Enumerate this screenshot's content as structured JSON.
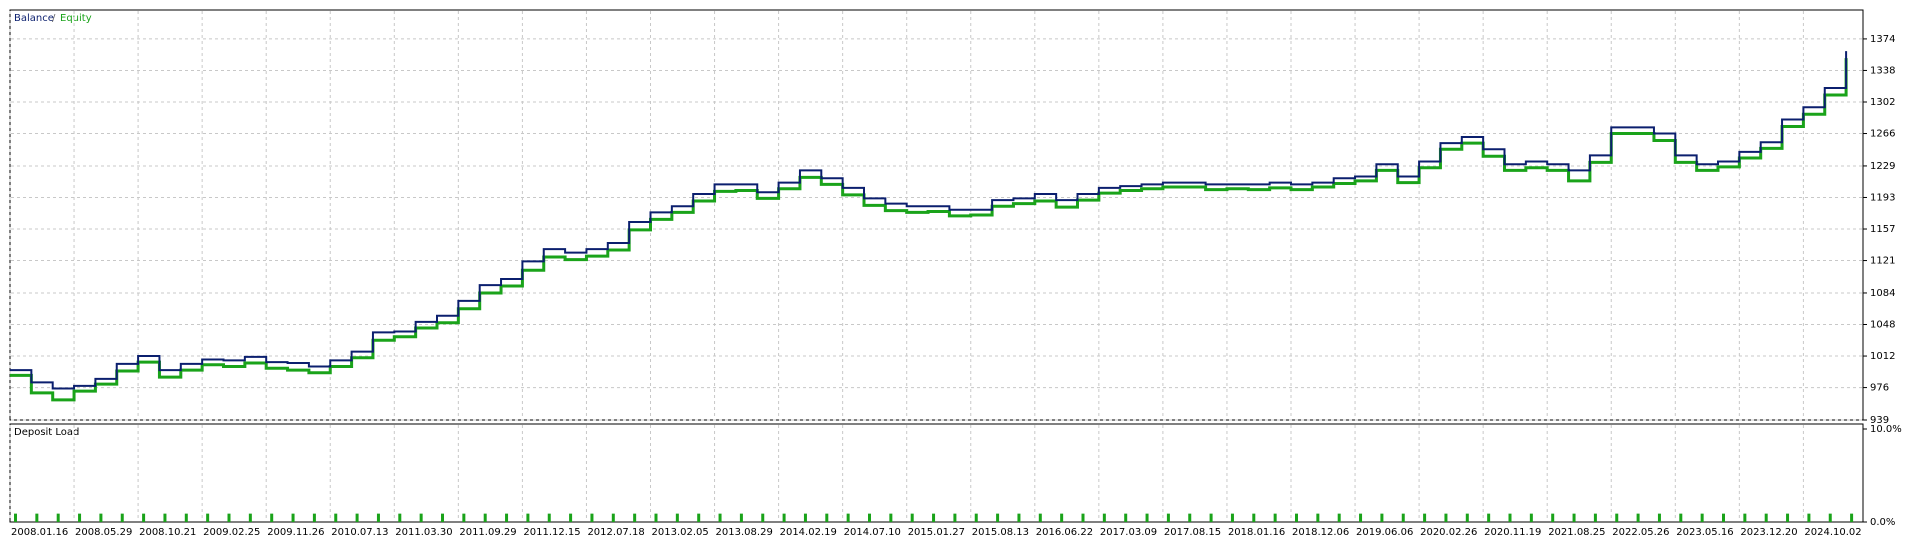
{
  "chart_data": [
    {
      "type": "line",
      "legend": [
        "Balance",
        "/",
        "Equity"
      ],
      "categories": [
        "2008.01.16",
        null,
        null,
        "2008.05.29",
        null,
        null,
        "2008.10.21",
        null,
        null,
        "2009.02.25",
        null,
        null,
        "2009.11.26",
        null,
        null,
        "2010.07.13",
        null,
        null,
        "2011.03.30",
        null,
        null,
        "2011.09.29",
        null,
        null,
        "2011.12.15",
        null,
        null,
        "2012.07.18",
        null,
        null,
        "2013.02.05",
        null,
        null,
        "2013.08.29",
        null,
        null,
        "2014.02.19",
        null,
        null,
        "2014.07.10",
        null,
        null,
        "2015.01.27",
        null,
        null,
        "2015.08.13",
        null,
        null,
        "2016.06.22",
        null,
        null,
        "2017.03.09",
        null,
        null,
        "2017.08.15",
        null,
        null,
        "2018.01.16",
        null,
        null,
        "2018.12.06",
        null,
        null,
        "2019.06.06",
        null,
        null,
        "2020.02.26",
        null,
        null,
        "2020.11.19",
        null,
        null,
        "2021.08.25",
        null,
        null,
        "2022.05.26",
        null,
        null,
        "2023.05.16",
        null,
        null,
        "2023.12.20",
        null,
        null,
        "2024.10.02",
        null,
        null
      ],
      "series": [
        {
          "name": "Equity",
          "color": "#1aa31a",
          "values": [
            990,
            970,
            962,
            972,
            980,
            995,
            1005,
            988,
            996,
            1002,
            1000,
            1004,
            998,
            996,
            993,
            1000,
            1010,
            1030,
            1034,
            1044,
            1050,
            1066,
            1084,
            1092,
            1110,
            1125,
            1122,
            1126,
            1133,
            1156,
            1168,
            1176,
            1189,
            1200,
            1201,
            1192,
            1203,
            1216,
            1208,
            1196,
            1184,
            1178,
            1176,
            1177,
            1172,
            1173,
            1183,
            1186,
            1189,
            1182,
            1190,
            1198,
            1201,
            1203,
            1205,
            1205,
            1202,
            1203,
            1202,
            1204,
            1202,
            1205,
            1209,
            1212,
            1224,
            1210,
            1227,
            1248,
            1255,
            1240,
            1224,
            1227,
            1224,
            1212,
            1233,
            1266,
            1266,
            1258,
            1233,
            1224,
            1228,
            1238,
            1249,
            1274,
            1288,
            1310,
            1352
          ]
        },
        {
          "name": "Balance",
          "color": "#0b1f6e",
          "values": [
            996,
            982,
            975,
            978,
            986,
            1003,
            1012,
            996,
            1003,
            1008,
            1007,
            1011,
            1005,
            1004,
            1000,
            1007,
            1017,
            1039,
            1040,
            1051,
            1058,
            1075,
            1093,
            1100,
            1120,
            1134,
            1130,
            1134,
            1141,
            1165,
            1176,
            1183,
            1197,
            1208,
            1208,
            1199,
            1210,
            1224,
            1215,
            1204,
            1192,
            1186,
            1183,
            1183,
            1179,
            1179,
            1190,
            1192,
            1197,
            1190,
            1197,
            1204,
            1206,
            1208,
            1210,
            1210,
            1208,
            1208,
            1208,
            1210,
            1208,
            1210,
            1215,
            1217,
            1231,
            1217,
            1234,
            1255,
            1262,
            1248,
            1231,
            1234,
            1231,
            1224,
            1241,
            1273,
            1273,
            1266,
            1241,
            1231,
            1234,
            1245,
            1256,
            1282,
            1296,
            1318,
            1360
          ]
        }
      ],
      "ylim": [
        939,
        1407
      ],
      "yticks": [
        939,
        976,
        1012,
        1048,
        1084,
        1121,
        1157,
        1193,
        1229,
        1266,
        1302,
        1338,
        1374
      ],
      "grid": true
    },
    {
      "type": "bar",
      "title": "Deposit Load",
      "color": "#1aa31a",
      "values": [
        0.9,
        0.9,
        0.9,
        0.9,
        0.9,
        0.9,
        0.9,
        0.9,
        0.9,
        0.9,
        0.9,
        0.9,
        0.9,
        0.9,
        0.9,
        0.9,
        0.9,
        0.9,
        0.9,
        0.9,
        0.9,
        0.9,
        0.9,
        0.9,
        0.9,
        0.9,
        0.9,
        0.9,
        0.9,
        0.9,
        0.9,
        0.9,
        0.9,
        0.9,
        0.9,
        0.9,
        0.9,
        0.9,
        0.9,
        0.9,
        0.9,
        0.9,
        0.9,
        0.9,
        0.9,
        0.9,
        0.9,
        0.9,
        0.9,
        0.9,
        0.9,
        0.9,
        0.9,
        0.9,
        0.9,
        0.9,
        0.9,
        0.9,
        0.9,
        0.9,
        0.9,
        0.9,
        0.9,
        0.9,
        0.9,
        0.9,
        0.9,
        0.9,
        0.9,
        0.9,
        0.9,
        0.9,
        0.9,
        0.9,
        0.9,
        0.9,
        0.9,
        0.9,
        0.9,
        0.9,
        0.9,
        0.9,
        0.9,
        0.9,
        0.9,
        0.9,
        0.9
      ],
      "ylim": [
        0,
        10
      ],
      "yticks": [
        {
          "value": 10,
          "label": "10.0%"
        },
        {
          "value": 0,
          "label": "0.0%"
        }
      ],
      "grid": false
    }
  ]
}
